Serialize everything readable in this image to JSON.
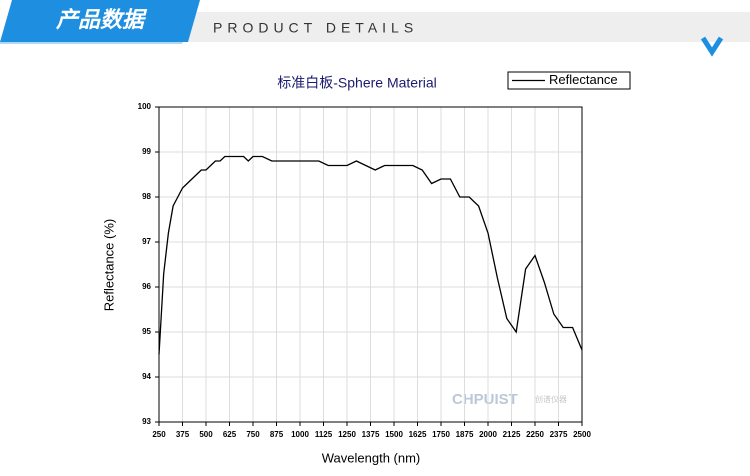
{
  "header": {
    "title_cn": "产品数据",
    "title_en": "PRODUCT DETAILS"
  },
  "watermark": {
    "brand": "CHPUIST",
    "brand_cn": "创谱仪器"
  },
  "chart_data": {
    "type": "line",
    "title": "标准白板-Sphere Material",
    "x_label": "Wavelength (nm)",
    "y_label": "Reflectance (%)",
    "x": [
      250,
      275,
      300,
      325,
      350,
      375,
      400,
      425,
      450,
      475,
      500,
      525,
      550,
      575,
      600,
      650,
      700,
      725,
      750,
      800,
      850,
      900,
      1000,
      1100,
      1150,
      1250,
      1300,
      1350,
      1400,
      1450,
      1600,
      1650,
      1700,
      1750,
      1800,
      1850,
      1900,
      1950,
      2000,
      2050,
      2100,
      2150,
      2200,
      2250,
      2300,
      2350,
      2400,
      2450,
      2500
    ],
    "series": [
      {
        "name": "Reflectance",
        "color": "#000000",
        "values": [
          94.5,
          96.3,
          97.2,
          97.8,
          98.0,
          98.2,
          98.3,
          98.4,
          98.5,
          98.6,
          98.6,
          98.7,
          98.8,
          98.8,
          98.9,
          98.9,
          98.9,
          98.8,
          98.9,
          98.9,
          98.8,
          98.8,
          98.8,
          98.8,
          98.7,
          98.7,
          98.8,
          98.7,
          98.6,
          98.7,
          98.7,
          98.6,
          98.3,
          98.4,
          98.4,
          98.0,
          98.0,
          97.8,
          97.2,
          96.2,
          95.3,
          95.0,
          96.4,
          96.7,
          96.1,
          95.4,
          95.1,
          95.1,
          94.6
        ]
      }
    ],
    "xlim": [
      250,
      2500
    ],
    "xticks": [
      250,
      375,
      500,
      625,
      750,
      875,
      1000,
      1125,
      1250,
      1375,
      1500,
      1625,
      1750,
      1875,
      2000,
      2125,
      2250,
      2375,
      2500
    ],
    "ylim": [
      93,
      100
    ],
    "yticks": [
      93,
      94,
      95,
      96,
      97,
      98,
      99,
      100
    ],
    "grid": true,
    "legend": "top-right"
  }
}
